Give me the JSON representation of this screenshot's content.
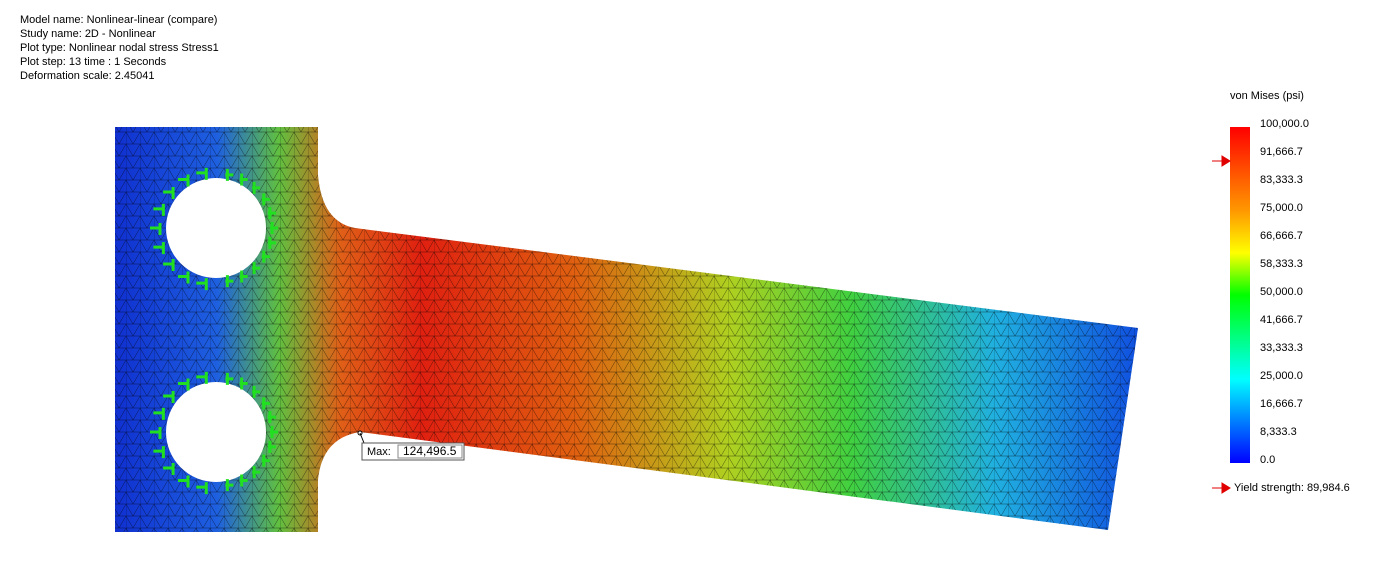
{
  "info": [
    "Model name: Nonlinear-linear (compare)",
    "Study name: 2D - Nonlinear",
    "Plot type: Nonlinear nodal stress Stress1",
    "Plot step: 13   time : 1 Seconds",
    "Deformation scale: 2.45041"
  ],
  "legend": {
    "title": "von Mises (psi)",
    "ticks": [
      "100,000.0",
      "91,666.7",
      "83,333.3",
      "75,000.0",
      "66,666.7",
      "58,333.3",
      "50,000.0",
      "41,666.7",
      "33,333.3",
      "25,000.0",
      "16,666.7",
      "8,333.3",
      "0.0"
    ]
  },
  "max": {
    "label": "Max:",
    "value": "124,496.5"
  },
  "yield": "Yield strength: 89,984.6"
}
